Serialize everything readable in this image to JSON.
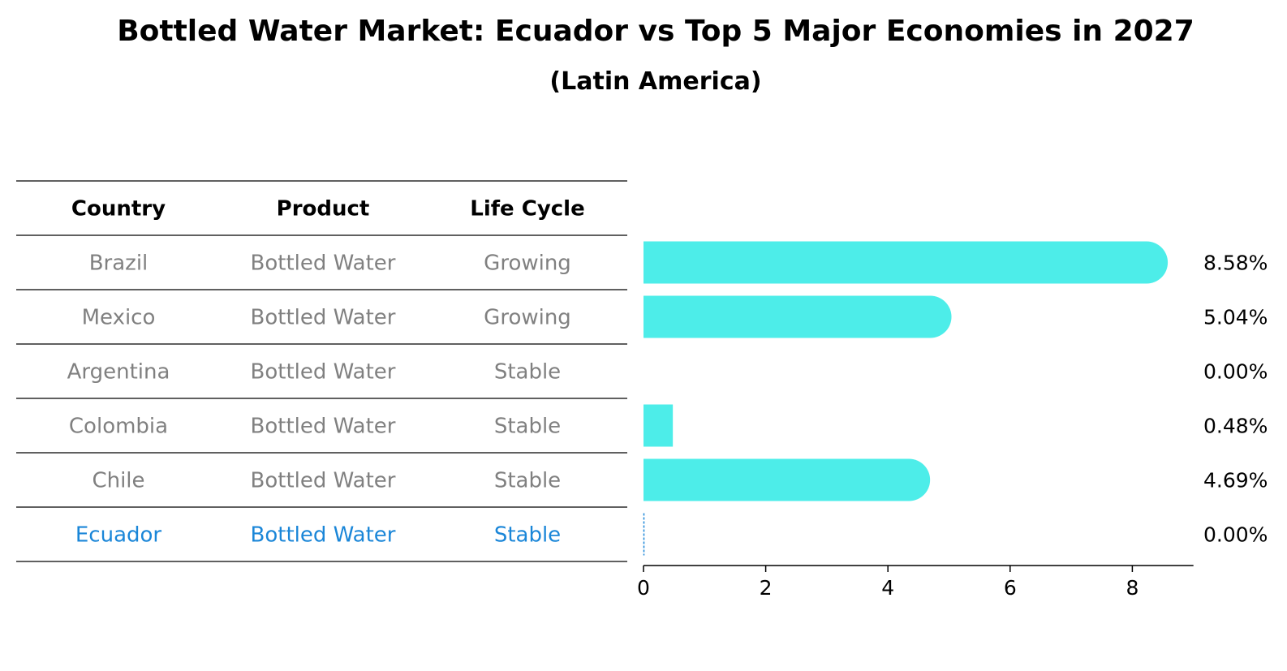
{
  "chart_data": {
    "type": "bar",
    "orientation": "horizontal",
    "title": "Bottled Water Market: Ecuador vs Top 5 Major Economies in 2027",
    "subtitle": "(Latin America)",
    "table": {
      "columns": [
        "Country",
        "Product",
        "Life Cycle"
      ],
      "rows": [
        [
          "Brazil",
          "Bottled Water",
          "Growing"
        ],
        [
          "Mexico",
          "Bottled Water",
          "Growing"
        ],
        [
          "Argentina",
          "Bottled Water",
          "Stable"
        ],
        [
          "Colombia",
          "Bottled Water",
          "Stable"
        ],
        [
          "Chile",
          "Bottled Water",
          "Stable"
        ],
        [
          "Ecuador",
          "Bottled Water",
          "Stable"
        ]
      ],
      "highlight_row": 5
    },
    "categories": [
      "Brazil",
      "Mexico",
      "Argentina",
      "Colombia",
      "Chile",
      "Ecuador"
    ],
    "values": [
      8.58,
      5.04,
      0.0,
      0.48,
      4.69,
      0.0
    ],
    "value_labels": [
      "8.58%",
      "5.04%",
      "0.00%",
      "0.48%",
      "4.69%",
      "0.00%"
    ],
    "xlim": [
      0,
      9
    ],
    "xticks": [
      0,
      2,
      4,
      6,
      8
    ],
    "grid": false,
    "colors": {
      "bar": "#4dede9",
      "text_muted": "#808080",
      "highlight": "#1a86d8",
      "header": "#000000",
      "rule": "#000000"
    }
  }
}
